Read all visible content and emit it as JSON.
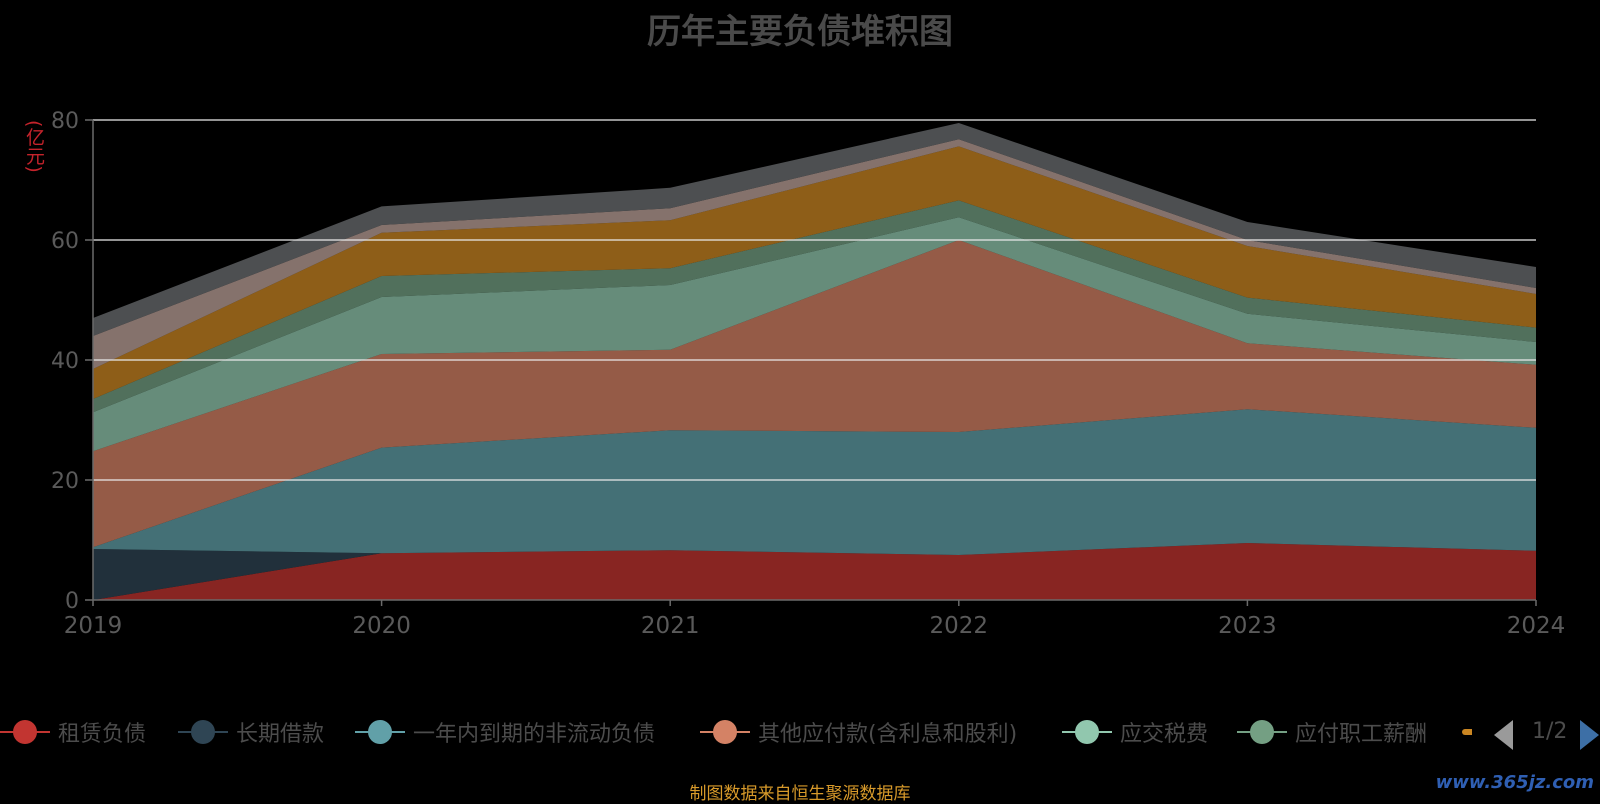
{
  "chart_data": {
    "type": "area",
    "stacked": true,
    "title": "历年主要负债堆积图",
    "y_unit": "(亿元)",
    "x": [
      "2019",
      "2020",
      "2021",
      "2022",
      "2023",
      "2024"
    ],
    "ylim": [
      0,
      80
    ],
    "yticks": [
      0,
      20,
      40,
      60,
      80
    ],
    "grid": true,
    "legend_position": "bottom",
    "series": [
      {
        "name": "租赁负债",
        "color": "#c23531",
        "values": [
          0,
          7.8,
          8.3,
          7.5,
          9.5,
          8.2
        ]
      },
      {
        "name": "长期借款",
        "color": "#2f4554",
        "values": [
          8.5,
          0,
          0,
          0,
          0,
          0
        ]
      },
      {
        "name": "一年内到期的非流动负债",
        "color": "#61a0a8",
        "values": [
          0.3,
          17.6,
          20.0,
          20.5,
          22.3,
          20.5
        ]
      },
      {
        "name": "其他应付款(含利息和股利)",
        "color": "#d48265",
        "values": [
          16.0,
          15.6,
          13.4,
          32.0,
          11.0,
          10.5
        ]
      },
      {
        "name": "应交税费",
        "color": "#91c7ae",
        "values": [
          6.5,
          9.5,
          10.8,
          3.8,
          4.9,
          3.8
        ]
      },
      {
        "name": "应付职工薪酬",
        "color": "#749f83",
        "values": [
          2.2,
          3.5,
          2.8,
          2.8,
          2.7,
          2.4
        ]
      },
      {
        "name": "",
        "color": "#ca8622",
        "values": [
          5.0,
          7.2,
          8.0,
          9.0,
          8.6,
          5.6
        ]
      },
      {
        "name": "",
        "color": "#bda29a",
        "values": [
          5.5,
          1.3,
          2.0,
          1.2,
          1.0,
          1.0
        ]
      },
      {
        "name": "",
        "color": "#6e7074",
        "values": [
          3.0,
          3.1,
          3.4,
          2.7,
          3.0,
          3.5
        ]
      }
    ]
  },
  "legend": {
    "items": [
      "租赁负债",
      "长期借款",
      "一年内到期的非流动负债",
      "其他应付款(含利息和股利)",
      "应交税费",
      "应付职工薪酬"
    ],
    "page_indicator": "1/2",
    "partial_color": "#ca8622"
  },
  "footer": {
    "source_note": "制图数据来自恒生聚源数据库",
    "watermark": "www.365jz.com"
  }
}
